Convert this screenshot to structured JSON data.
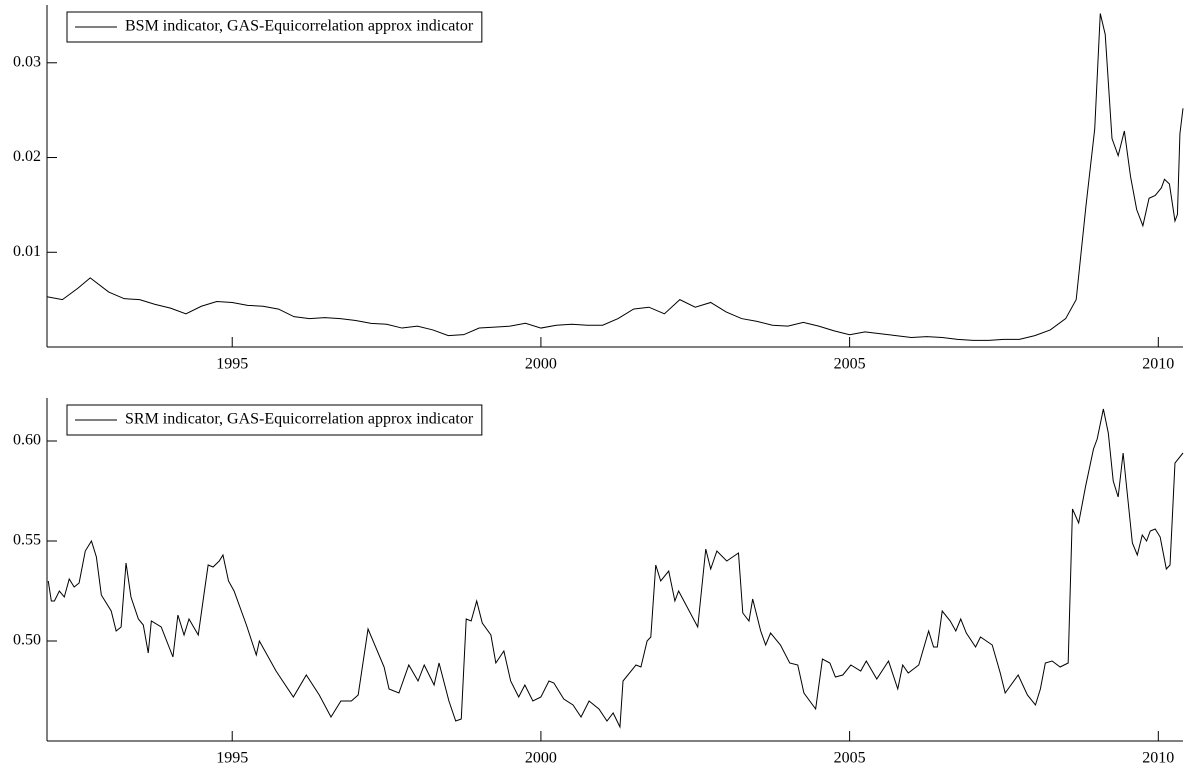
{
  "chart_data": [
    {
      "type": "line",
      "xlim": [
        1992.0,
        2010.4
      ],
      "xticks": [
        1995,
        2000,
        2005,
        2010
      ],
      "ylim": [
        0,
        0.0361
      ],
      "yticks": [
        0.01,
        0.02,
        0.03
      ],
      "legend": "upper left",
      "series": [
        {
          "name": "BSM indicator, GAS-Equicorrelation approx indicator",
          "color": "#000000",
          "x": [
            1992.0,
            1992.25,
            1992.5,
            1992.7,
            1993.0,
            1993.25,
            1993.5,
            1993.75,
            1994.0,
            1994.25,
            1994.5,
            1994.75,
            1995.0,
            1995.25,
            1995.5,
            1995.75,
            1996.0,
            1996.25,
            1996.5,
            1996.75,
            1997.0,
            1997.25,
            1997.5,
            1997.75,
            1998.0,
            1998.25,
            1998.5,
            1998.75,
            1999.0,
            1999.25,
            1999.5,
            1999.75,
            2000.0,
            2000.25,
            2000.5,
            2000.75,
            2001.0,
            2001.25,
            2001.5,
            2001.75,
            2002.0,
            2002.25,
            2002.5,
            2002.75,
            2003.0,
            2003.25,
            2003.5,
            2003.75,
            2004.0,
            2004.25,
            2004.5,
            2004.75,
            2005.0,
            2005.25,
            2005.5,
            2005.75,
            2006.0,
            2006.25,
            2006.5,
            2006.75,
            2007.0,
            2007.25,
            2007.5,
            2007.75,
            2008.0,
            2008.25,
            2008.5,
            2008.67,
            2008.83,
            2008.97,
            2009.06,
            2009.14,
            2009.25,
            2009.35,
            2009.45,
            2009.55,
            2009.65,
            2009.75,
            2009.85,
            2009.95,
            2010.05,
            2010.1,
            2010.18,
            2010.27,
            2010.31,
            2010.35,
            2010.4
          ],
          "values": [
            0.0053,
            0.005,
            0.0062,
            0.0073,
            0.0058,
            0.0051,
            0.005,
            0.0045,
            0.0041,
            0.0035,
            0.0043,
            0.0048,
            0.0047,
            0.0044,
            0.0043,
            0.004,
            0.0032,
            0.003,
            0.0031,
            0.003,
            0.0028,
            0.0025,
            0.0024,
            0.002,
            0.0022,
            0.0018,
            0.0012,
            0.0013,
            0.002,
            0.0021,
            0.0022,
            0.0025,
            0.002,
            0.0023,
            0.0024,
            0.0023,
            0.0023,
            0.003,
            0.004,
            0.0042,
            0.0035,
            0.005,
            0.0042,
            0.0047,
            0.0037,
            0.003,
            0.0027,
            0.0023,
            0.0022,
            0.0026,
            0.0022,
            0.0017,
            0.0013,
            0.0016,
            0.0014,
            0.0012,
            0.001,
            0.0011,
            0.001,
            0.0008,
            0.0007,
            0.0007,
            0.0008,
            0.0008,
            0.0012,
            0.0018,
            0.003,
            0.005,
            0.015,
            0.023,
            0.0352,
            0.033,
            0.022,
            0.0202,
            0.0228,
            0.018,
            0.0145,
            0.0128,
            0.0157,
            0.016,
            0.0168,
            0.0177,
            0.0172,
            0.0133,
            0.014,
            0.0225,
            0.0252
          ]
        }
      ]
    },
    {
      "type": "line",
      "xlim": [
        1992.0,
        2010.4
      ],
      "xticks": [
        1995,
        2000,
        2005,
        2010
      ],
      "ylim": [
        0.45,
        0.6215
      ],
      "yticks": [
        {
          "value": 0.5,
          "label": "0.50"
        },
        0.55,
        {
          "value": 0.6,
          "label": "0.60"
        }
      ],
      "legend": "upper left",
      "series": [
        {
          "name": "SRM indicator, GAS-Equicorrelation approx indicator",
          "color": "#000000",
          "x": [
            1992.02,
            1992.07,
            1992.12,
            1992.2,
            1992.28,
            1992.36,
            1992.44,
            1992.52,
            1992.62,
            1992.72,
            1992.8,
            1992.88,
            1993.04,
            1993.12,
            1993.2,
            1993.28,
            1993.36,
            1993.48,
            1993.56,
            1993.64,
            1993.69,
            1993.85,
            1994.04,
            1994.12,
            1994.22,
            1994.3,
            1994.45,
            1994.55,
            1994.61,
            1994.69,
            1994.79,
            1994.85,
            1994.94,
            1995.03,
            1995.23,
            1995.39,
            1995.44,
            1995.71,
            1995.99,
            1996.2,
            1996.41,
            1996.6,
            1996.76,
            1996.93,
            1997.04,
            1997.2,
            1997.46,
            1997.54,
            1997.7,
            1997.86,
            1998.01,
            1998.11,
            1998.27,
            1998.35,
            1998.51,
            1998.62,
            1998.71,
            1998.79,
            1998.87,
            1998.96,
            1999.05,
            1999.19,
            1999.27,
            1999.4,
            1999.51,
            1999.64,
            1999.74,
            1999.87,
            2000.0,
            2000.13,
            2000.21,
            2000.37,
            2000.52,
            2000.65,
            2000.78,
            2000.94,
            2001.07,
            2001.17,
            2001.28,
            2001.33,
            2001.54,
            2001.62,
            2001.72,
            2001.78,
            2001.86,
            2001.94,
            2002.07,
            2002.17,
            2002.23,
            2002.54,
            2002.67,
            2002.75,
            2002.85,
            2003.01,
            2003.2,
            2003.27,
            2003.37,
            2003.43,
            2003.56,
            2003.64,
            2003.72,
            2003.88,
            2004.03,
            2004.16,
            2004.26,
            2004.45,
            2004.56,
            2004.68,
            2004.77,
            2004.89,
            2005.02,
            2005.18,
            2005.27,
            2005.44,
            2005.63,
            2005.78,
            2005.86,
            2005.95,
            2006.12,
            2006.28,
            2006.36,
            2006.42,
            2006.5,
            2006.63,
            2006.72,
            2006.8,
            2006.89,
            2007.04,
            2007.12,
            2007.31,
            2007.44,
            2007.52,
            2007.73,
            2007.88,
            2008.01,
            2008.09,
            2008.17,
            2008.28,
            2008.41,
            2008.54,
            2008.61,
            2008.71,
            2008.82,
            2008.95,
            2009.01,
            2009.11,
            2009.19,
            2009.27,
            2009.35,
            2009.43,
            2009.51,
            2009.58,
            2009.66,
            2009.74,
            2009.81,
            2009.87,
            2009.95,
            2010.03,
            2010.13,
            2010.19,
            2010.27,
            2010.4
          ],
          "values": [
            0.53,
            0.52,
            0.52,
            0.525,
            0.522,
            0.531,
            0.527,
            0.529,
            0.545,
            0.55,
            0.542,
            0.523,
            0.515,
            0.505,
            0.507,
            0.539,
            0.522,
            0.511,
            0.508,
            0.494,
            0.51,
            0.507,
            0.492,
            0.513,
            0.503,
            0.511,
            0.503,
            0.525,
            0.538,
            0.537,
            0.54,
            0.543,
            0.53,
            0.525,
            0.508,
            0.493,
            0.5,
            0.485,
            0.472,
            0.483,
            0.473,
            0.462,
            0.47,
            0.47,
            0.473,
            0.506,
            0.487,
            0.476,
            0.474,
            0.488,
            0.48,
            0.488,
            0.478,
            0.489,
            0.47,
            0.46,
            0.461,
            0.511,
            0.51,
            0.52,
            0.509,
            0.503,
            0.489,
            0.495,
            0.48,
            0.472,
            0.478,
            0.47,
            0.472,
            0.48,
            0.479,
            0.471,
            0.468,
            0.462,
            0.47,
            0.466,
            0.46,
            0.464,
            0.457,
            0.48,
            0.488,
            0.487,
            0.5,
            0.502,
            0.538,
            0.53,
            0.535,
            0.52,
            0.525,
            0.507,
            0.546,
            0.536,
            0.545,
            0.54,
            0.544,
            0.514,
            0.51,
            0.521,
            0.505,
            0.498,
            0.504,
            0.498,
            0.489,
            0.488,
            0.474,
            0.466,
            0.491,
            0.489,
            0.482,
            0.483,
            0.488,
            0.485,
            0.49,
            0.481,
            0.49,
            0.476,
            0.488,
            0.484,
            0.488,
            0.505,
            0.497,
            0.497,
            0.515,
            0.51,
            0.505,
            0.511,
            0.504,
            0.497,
            0.502,
            0.498,
            0.484,
            0.474,
            0.483,
            0.473,
            0.468,
            0.476,
            0.489,
            0.49,
            0.487,
            0.489,
            0.566,
            0.559,
            0.577,
            0.596,
            0.601,
            0.616,
            0.604,
            0.58,
            0.572,
            0.594,
            0.57,
            0.549,
            0.543,
            0.553,
            0.55,
            0.555,
            0.556,
            0.552,
            0.536,
            0.538,
            0.589,
            0.594
          ]
        }
      ]
    }
  ]
}
